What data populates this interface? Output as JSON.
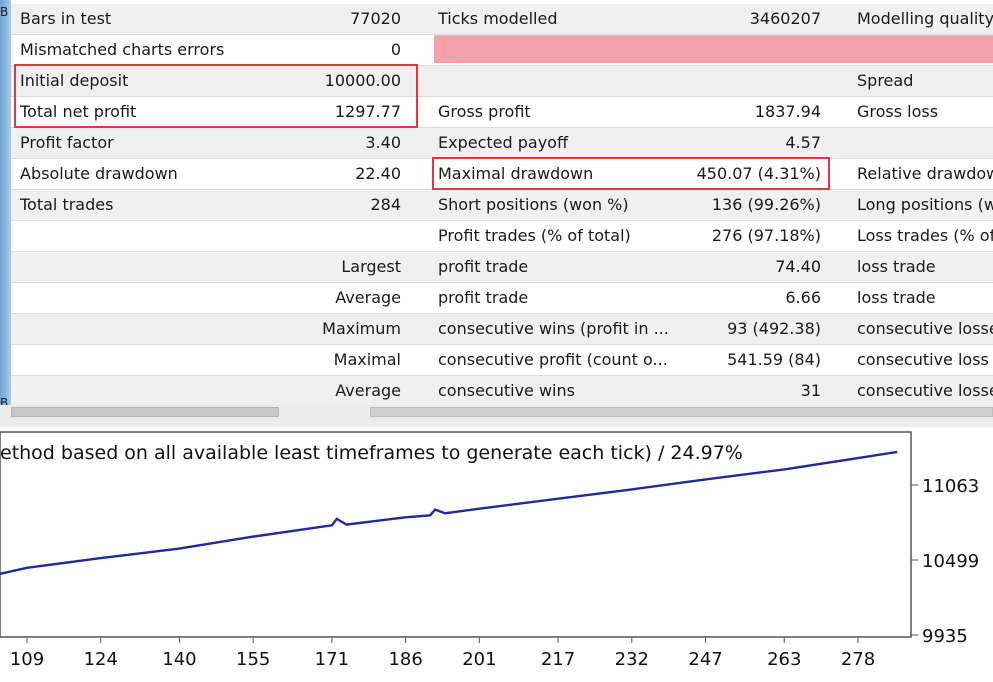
{
  "report": {
    "rows": [
      {
        "l1": "Bars in test",
        "v1": "77020",
        "l2": "Ticks modelled",
        "v2": "3460207",
        "l3": "Modelling quality"
      },
      {
        "l1": "Mismatched charts errors",
        "v1": "0",
        "l2": "",
        "v2": "",
        "l3": ""
      },
      {
        "l1": "Initial deposit",
        "v1": "10000.00",
        "l2": "",
        "v2": "",
        "l3": "Spread"
      },
      {
        "l1": "Total net profit",
        "v1": "1297.77",
        "l2": "Gross profit",
        "v2": "1837.94",
        "l3": "Gross loss"
      },
      {
        "l1": "Profit factor",
        "v1": "3.40",
        "l2": "Expected payoff",
        "v2": "4.57",
        "l3": ""
      },
      {
        "l1": "Absolute drawdown",
        "v1": "22.40",
        "l2": "Maximal drawdown",
        "v2": "450.07 (4.31%)",
        "l3": "Relative drawdown"
      },
      {
        "l1": "Total trades",
        "v1": "284",
        "l2": "Short positions (won %)",
        "v2": "136 (99.26%)",
        "l3": "Long positions (won %)"
      },
      {
        "l1": "",
        "v1": "",
        "l2": "Profit trades (% of total)",
        "v2": "276 (97.18%)",
        "l3": "Loss trades (% of total)"
      },
      {
        "l1": "",
        "v1": "Largest",
        "l2": "profit trade",
        "v2": "74.40",
        "l3": "loss trade"
      },
      {
        "l1": "",
        "v1": "Average",
        "l2": "profit trade",
        "v2": "6.66",
        "l3": "loss trade"
      },
      {
        "l1": "",
        "v1": "Maximum",
        "l2": "consecutive wins (profit in ...",
        "v2": "93 (492.38)",
        "l3": "consecutive losses"
      },
      {
        "l1": "",
        "v1": "Maximal",
        "l2": "consecutive profit (count o...",
        "v2": "541.59 (84)",
        "l3": "consecutive loss"
      },
      {
        "l1": "",
        "v1": "Average",
        "l2": "consecutive wins",
        "v2": "31",
        "l3": "consecutive losses"
      }
    ]
  },
  "left_strip_mark": "B",
  "chart": {
    "title": "ethod based on all available least timeframes to generate each tick) / 24.97%",
    "line_color": "#1f2a9e",
    "y_ticks": [
      "11063",
      "10499",
      "9935"
    ],
    "x_ticks": [
      "109",
      "124",
      "140",
      "155",
      "171",
      "186",
      "201",
      "217",
      "232",
      "247",
      "263",
      "278"
    ]
  },
  "chart_data": {
    "type": "line",
    "title": "ethod based on all available least timeframes to generate each tick) / 24.97%",
    "xlabel": "",
    "ylabel": "",
    "ylim": [
      9935,
      11400
    ],
    "x_ticks": [
      109,
      124,
      140,
      155,
      171,
      186,
      201,
      217,
      232,
      247,
      263,
      278
    ],
    "y_ticks": [
      9935,
      10499,
      11063
    ],
    "series": [
      {
        "x": [
          100,
          109,
          124,
          140,
          145,
          155,
          171,
          172,
          174,
          186,
          191,
          192,
          194,
          201,
          217,
          232,
          247,
          263,
          278,
          286
        ],
        "y": [
          10395,
          10440,
          10513,
          10585,
          10615,
          10675,
          10760,
          10808,
          10765,
          10820,
          10835,
          10878,
          10850,
          10885,
          10960,
          11030,
          11105,
          11180,
          11265,
          11312
        ]
      }
    ]
  }
}
